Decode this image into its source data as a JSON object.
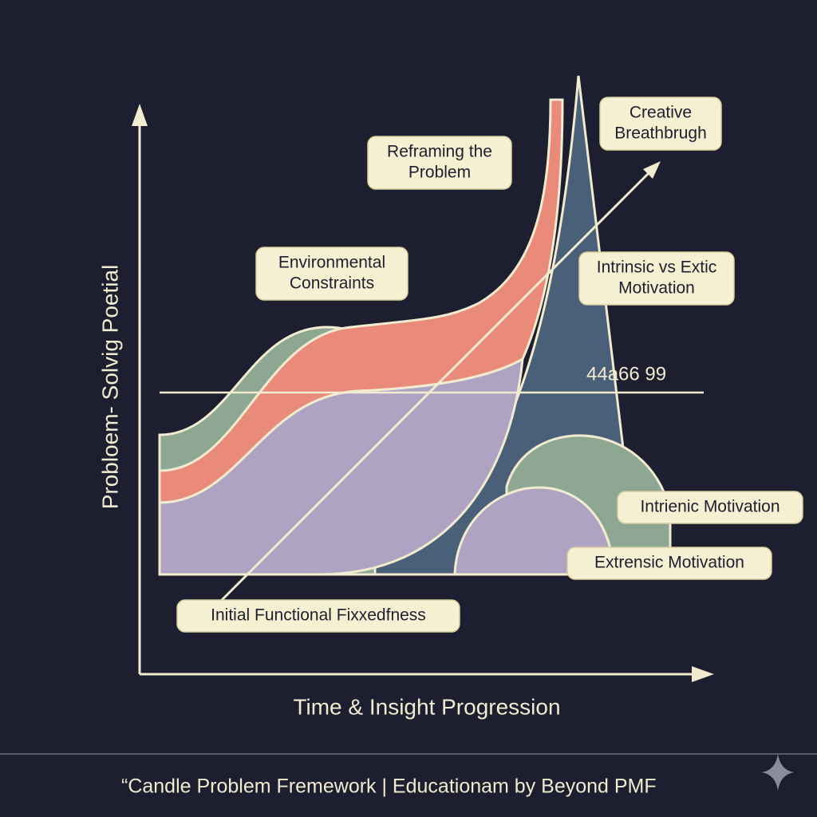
{
  "axes": {
    "y_label": "Probloem- Solvig Poetial",
    "x_label": "Time & Insight Progression"
  },
  "labels": [
    {
      "lines": [
        "Creative",
        "Breathbrugh"
      ]
    },
    {
      "lines": [
        "Reframing the",
        "Problem"
      ]
    },
    {
      "lines": [
        "Environmental",
        "Constraints"
      ]
    },
    {
      "lines": [
        "Intrinsic vs Extic",
        "Motivation"
      ]
    },
    {
      "lines": [
        "Intrienic Motivation"
      ]
    },
    {
      "lines": [
        "Extrensic Motivation"
      ]
    },
    {
      "lines": [
        "Initial Functional Fixxedfness"
      ]
    }
  ],
  "threshold_label": "44a66 99",
  "footer": "“Candle Problem Fremework | Educationam by Beyond PMF"
}
